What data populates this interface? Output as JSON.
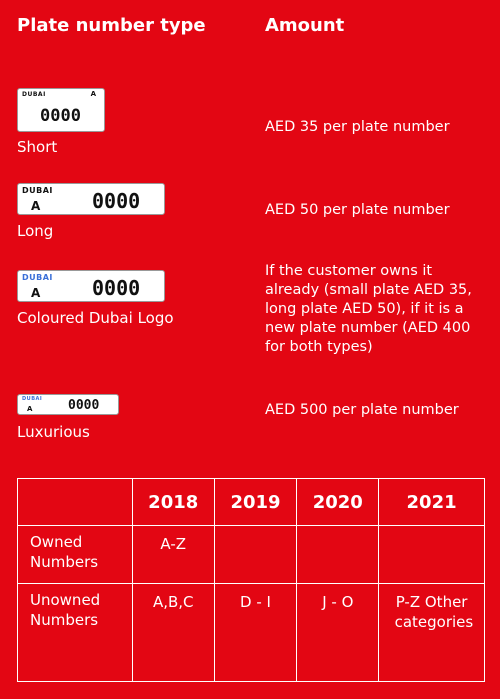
{
  "header": {
    "type_heading": "Plate number type",
    "amount_heading": "Amount"
  },
  "plates": [
    {
      "label": "Short",
      "emirate": "DUBAI",
      "letter": "A",
      "number": "0000",
      "amount": "AED 35 per plate number"
    },
    {
      "label": "Long",
      "emirate": "DUBAI",
      "letter": "A",
      "number": "0000",
      "amount": "AED 50 per plate number"
    },
    {
      "label": "Coloured Dubai Logo",
      "emirate": "DUBAI",
      "letter": "A",
      "number": "0000",
      "amount": "If the customer owns it already (small plate AED 35, long plate AED 50), if it is a new plate number (AED 400 for both types)"
    },
    {
      "label": "Luxurious",
      "emirate": "DUBAI",
      "letter": "A",
      "number": "0000",
      "amount": "AED 500 per plate number"
    }
  ],
  "table": {
    "years": [
      "2018",
      "2019",
      "2020",
      "2021"
    ],
    "rows": [
      {
        "label": "Owned Numbers",
        "cells": [
          "A-Z",
          null,
          null,
          null
        ]
      },
      {
        "label": "Unowned Numbers",
        "cells": [
          "A,B,C",
          "D - I",
          "J - O",
          "P-Z Other categories"
        ]
      }
    ]
  }
}
